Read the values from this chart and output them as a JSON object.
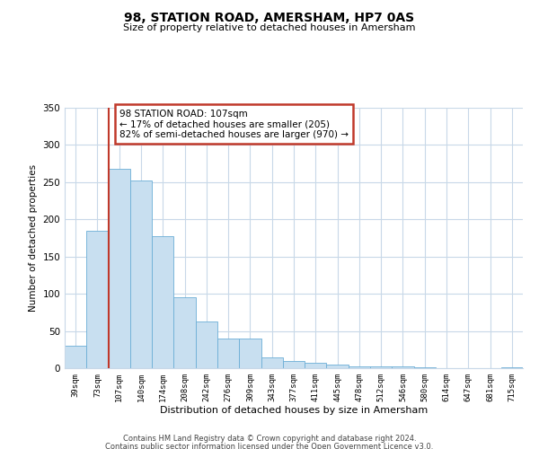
{
  "title": "98, STATION ROAD, AMERSHAM, HP7 0AS",
  "subtitle": "Size of property relative to detached houses in Amersham",
  "xlabel": "Distribution of detached houses by size in Amersham",
  "ylabel": "Number of detached properties",
  "bar_labels": [
    "39sqm",
    "73sqm",
    "107sqm",
    "140sqm",
    "174sqm",
    "208sqm",
    "242sqm",
    "276sqm",
    "309sqm",
    "343sqm",
    "377sqm",
    "411sqm",
    "445sqm",
    "478sqm",
    "512sqm",
    "546sqm",
    "580sqm",
    "614sqm",
    "647sqm",
    "681sqm",
    "715sqm"
  ],
  "bar_values": [
    30,
    185,
    268,
    252,
    178,
    95,
    63,
    40,
    40,
    15,
    10,
    7,
    5,
    3,
    2,
    2,
    1,
    0,
    0,
    0,
    1
  ],
  "bar_color": "#c8dff0",
  "bar_edge_color": "#6baed6",
  "vline_x_index": 2,
  "vline_color": "#c0392b",
  "annotation_text_line1": "98 STATION ROAD: 107sqm",
  "annotation_text_line2": "← 17% of detached houses are smaller (205)",
  "annotation_text_line3": "82% of semi-detached houses are larger (970) →",
  "annotation_box_color": "#c0392b",
  "ylim": [
    0,
    350
  ],
  "yticks": [
    0,
    50,
    100,
    150,
    200,
    250,
    300,
    350
  ],
  "footer_line1": "Contains HM Land Registry data © Crown copyright and database right 2024.",
  "footer_line2": "Contains public sector information licensed under the Open Government Licence v3.0.",
  "bg_color": "#ffffff",
  "grid_color": "#c8d8e8"
}
